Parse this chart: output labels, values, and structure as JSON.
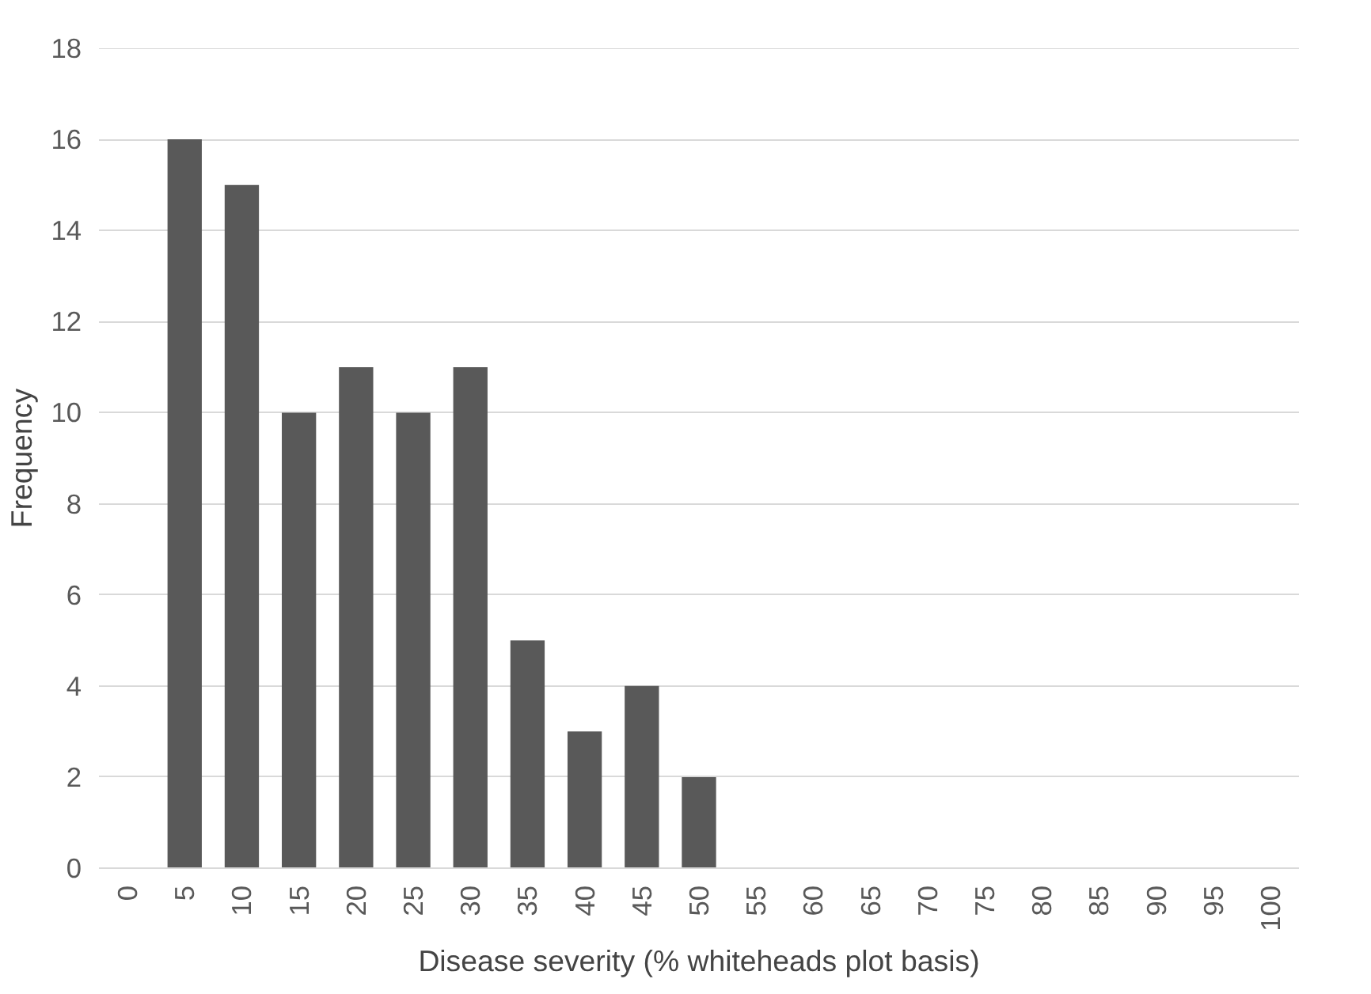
{
  "chart_data": {
    "type": "bar",
    "xlabel": "Disease severity (% whiteheads plot basis)",
    "ylabel": "Frequency",
    "categories": [
      "0",
      "5",
      "10",
      "15",
      "20",
      "25",
      "30",
      "35",
      "40",
      "45",
      "50",
      "55",
      "60",
      "65",
      "70",
      "75",
      "80",
      "85",
      "90",
      "95",
      "100"
    ],
    "values": [
      0,
      16,
      15,
      10,
      11,
      10,
      11,
      5,
      3,
      4,
      2,
      0,
      0,
      0,
      0,
      0,
      0,
      0,
      0,
      0,
      0
    ],
    "color": "#595959",
    "ylim": [
      0,
      18
    ],
    "yticks": [
      0,
      2,
      4,
      6,
      8,
      10,
      12,
      14,
      16,
      18
    ],
    "grid": "y"
  }
}
